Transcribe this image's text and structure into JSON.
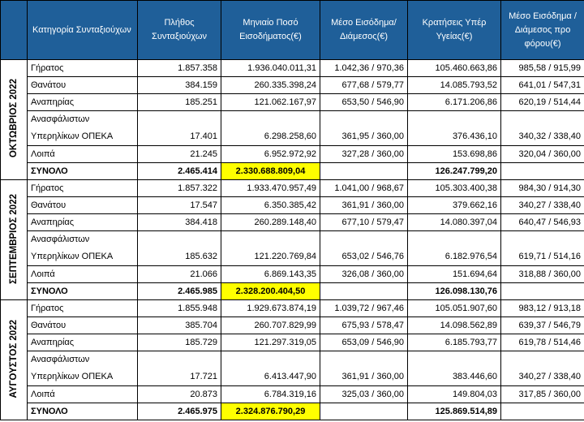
{
  "header": {
    "category": "Κατηγορία Συνταξιούχων",
    "count": "Πλήθος Συνταξιούχων",
    "monthly_income": "Μηνιαίο Ποσό Εισοδήματος(€)",
    "avg_income": "Μέσο Εισόδημα/ Διάμεσος(€)",
    "health_deductions": "Κρατήσεις Υπέρ Υγείας(€)",
    "avg_income_pre_tax": "Μέσο Εισόδημα /Διάμεσος προ φόρου(€)"
  },
  "groups": [
    {
      "period": "ΟΚΤΩΒΡΙΟΣ 2022",
      "rows": [
        {
          "category": [
            "Γήρατος"
          ],
          "count": "1.857.358",
          "monthly": "1.936.040.011,31",
          "avg": "1.042,36 / 970,36",
          "health": "105.460.663,86",
          "pretax": "985,58 / 915,99"
        },
        {
          "category": [
            "Θανάτου"
          ],
          "count": "384.159",
          "monthly": "260.335.398,24",
          "avg": "677,68 / 579,77",
          "health": "14.085.793,52",
          "pretax": "641,01 / 547,31"
        },
        {
          "category": [
            "Αναπηρίας"
          ],
          "count": "185.251",
          "monthly": "121.062.167,97",
          "avg": "653,50 / 546,90",
          "health": "6.171.206,86",
          "pretax": "620,19 / 514,44"
        },
        {
          "category": [
            "Ανασφάλιστων",
            "Υπερηλίκων ΟΠΕΚΑ"
          ],
          "count": "17.401",
          "monthly": "6.298.258,60",
          "avg": "361,95 / 360,00",
          "health": "376.436,10",
          "pretax": "340,32 / 338,40"
        },
        {
          "category": [
            "Λοιπά"
          ],
          "count": "21.245",
          "monthly": "6.952.972,92",
          "avg": "327,28 / 360,00",
          "health": "153.698,86",
          "pretax": "320,04 / 360,00"
        }
      ],
      "total": {
        "label": "ΣΥΝΟΛΟ",
        "count": "2.465.414",
        "monthly": "2.330.688.809,04",
        "health": "126.247.799,20"
      }
    },
    {
      "period": "ΣΕΠΤΕΜΒΡΙΟΣ 2022",
      "rows": [
        {
          "category": [
            "Γήρατος"
          ],
          "count": "1.857.322",
          "monthly": "1.933.470.957,49",
          "avg": "1.041,00 / 968,67",
          "health": "105.303.400,38",
          "pretax": "984,30 / 914,30"
        },
        {
          "category": [
            "Θανάτου"
          ],
          "count": "17.547",
          "monthly": "6.350.385,42",
          "avg": "361,91 / 360,00",
          "health": "379.662,16",
          "pretax": "340,27 / 338,40"
        },
        {
          "category": [
            "Αναπηρίας"
          ],
          "count": "384.418",
          "monthly": "260.289.148,40",
          "avg": "677,10 / 579,47",
          "health": "14.080.397,04",
          "pretax": "640,47 / 546,93"
        },
        {
          "category": [
            "Ανασφάλιστων",
            "Υπερηλίκων ΟΠΕΚΑ"
          ],
          "count": "185.632",
          "monthly": "121.220.769,84",
          "avg": "653,02 / 546,76",
          "health": "6.182.976,54",
          "pretax": "619,71 / 514,16"
        },
        {
          "category": [
            "Λοιπά"
          ],
          "count": "21.066",
          "monthly": "6.869.143,35",
          "avg": "326,08 / 360,00",
          "health": "151.694,64",
          "pretax": "318,88 / 360,00"
        }
      ],
      "total": {
        "label": "ΣΥΝΟΛΟ",
        "count": "2.465.985",
        "monthly": "2.328.200.404,50",
        "health": "126.098.130,76"
      }
    },
    {
      "period": "ΑΥΓΟΥΣΤΟΣ 2022",
      "rows": [
        {
          "category": [
            "Γήρατος"
          ],
          "count": "1.855.948",
          "monthly": "1.929.673.874,19",
          "avg": "1.039,72 / 967,46",
          "health": "105.051.907,60",
          "pretax": "983,12 / 913,18"
        },
        {
          "category": [
            "Θανάτου"
          ],
          "count": "385.704",
          "monthly": "260.707.829,99",
          "avg": "675,93 / 578,47",
          "health": "14.098.562,89",
          "pretax": "639,37 / 546,79"
        },
        {
          "category": [
            "Αναπηρίας"
          ],
          "count": "185.729",
          "monthly": "121.297.319,05",
          "avg": "653,09 / 546,90",
          "health": "6.185.793,77",
          "pretax": "619,78 / 514,46"
        },
        {
          "category": [
            "Ανασφάλιστων",
            "Υπερηλίκων ΟΠΕΚΑ"
          ],
          "count": "17.721",
          "monthly": "6.413.447,90",
          "avg": "361,91 / 360,00",
          "health": "383.446,60",
          "pretax": "340,27 / 338,40"
        },
        {
          "category": [
            "Λοιπά"
          ],
          "count": "20.873",
          "monthly": "6.784.319,16",
          "avg": "325,03 / 360,00",
          "health": "149.804,03",
          "pretax": "317,85 / 360,00"
        }
      ],
      "total": {
        "label": "ΣΥΝΟΛΟ",
        "count": "2.465.975",
        "monthly": "2.324.876.790,29",
        "health": "125.869.514,89"
      }
    }
  ],
  "colors": {
    "header_bg": "#1f5f99",
    "header_text": "#ffffff",
    "highlight": "#ffff00"
  }
}
